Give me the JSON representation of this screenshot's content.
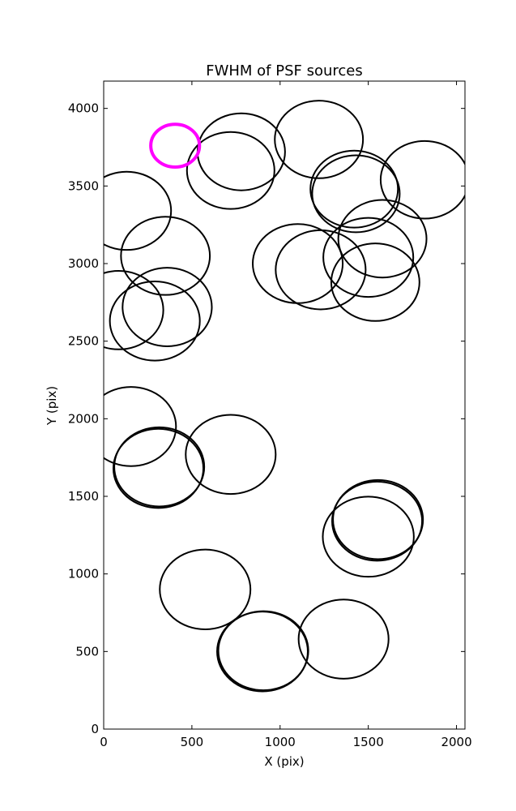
{
  "chart_data": {
    "type": "scatter",
    "title": "FWHM of PSF sources",
    "xlabel": "X (pix)",
    "ylabel": "Y (pix)",
    "xlim": [
      0,
      2048
    ],
    "ylim": [
      0,
      4176
    ],
    "xticks": [
      "0",
      "500",
      "1000",
      "1500",
      "2000"
    ],
    "yticks": [
      "0",
      "500",
      "1000",
      "1500",
      "2000",
      "2500",
      "3000",
      "3500",
      "4000"
    ],
    "grid": false,
    "series": [
      {
        "color": "#000000",
        "points": [
          {
            "x": 1220,
            "y": 3800,
            "r": 250
          },
          {
            "x": 780,
            "y": 3720,
            "r": 248
          },
          {
            "x": 720,
            "y": 3600,
            "r": 248
          },
          {
            "x": 1820,
            "y": 3540,
            "r": 250
          },
          {
            "x": 1420,
            "y": 3480,
            "r": 248
          },
          {
            "x": 1430,
            "y": 3450,
            "r": 248
          },
          {
            "x": 130,
            "y": 3340,
            "r": 252
          },
          {
            "x": 1580,
            "y": 3160,
            "r": 250
          },
          {
            "x": 1500,
            "y": 3040,
            "r": 255
          },
          {
            "x": 350,
            "y": 3050,
            "r": 252
          },
          {
            "x": 1100,
            "y": 3000,
            "r": 255
          },
          {
            "x": 1230,
            "y": 2960,
            "r": 255
          },
          {
            "x": 1540,
            "y": 2880,
            "r": 250
          },
          {
            "x": 360,
            "y": 2720,
            "r": 253
          },
          {
            "x": 85,
            "y": 2700,
            "r": 253
          },
          {
            "x": 290,
            "y": 2630,
            "r": 255
          },
          {
            "x": 155,
            "y": 1950,
            "r": 255
          },
          {
            "x": 720,
            "y": 1770,
            "r": 255
          },
          {
            "x": 310,
            "y": 1680,
            "r": 255
          },
          {
            "x": 315,
            "y": 1690,
            "r": 255
          },
          {
            "x": 1550,
            "y": 1340,
            "r": 255
          },
          {
            "x": 1555,
            "y": 1350,
            "r": 255
          },
          {
            "x": 1500,
            "y": 1240,
            "r": 258
          },
          {
            "x": 575,
            "y": 900,
            "r": 257
          },
          {
            "x": 1360,
            "y": 580,
            "r": 255
          },
          {
            "x": 900,
            "y": 500,
            "r": 257
          },
          {
            "x": 905,
            "y": 505,
            "r": 255
          }
        ]
      },
      {
        "color": "#ff00ff",
        "points": [
          {
            "x": 405,
            "y": 3760,
            "r": 138
          }
        ]
      }
    ]
  }
}
